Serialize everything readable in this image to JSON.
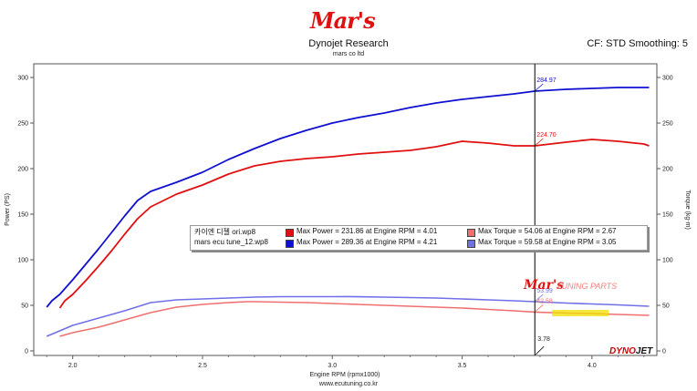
{
  "header": {
    "logo_text": "Mar's",
    "title": "Dynojet Research",
    "subtitle": "mars co ltd",
    "cf_label": "CF: STD Smoothing: 5"
  },
  "footer": {
    "url": "www.ecutuning.co.kr"
  },
  "watermarks": {
    "brand": "Mar's",
    "brand_sub": "TUNING PARTS",
    "dynojet_a": "DYNO",
    "dynojet_b": "JET"
  },
  "colors": {
    "ori_power": "#e01010",
    "ori_torque": "#f07070",
    "tune_power": "#1010d0",
    "tune_torque": "#7070e8"
  },
  "legend": [
    {
      "file": "카이엔 디젤 ori.wp8",
      "power": "Max Power = 231.86 at Engine RPM = 4.01",
      "torque": "Max Torque = 54.06 at Engine RPM = 2.67"
    },
    {
      "file": "mars ecu tune_12.wp8",
      "power": "Max Power = 289.36 at Engine RPM = 4.21",
      "torque": "Max Torque = 59.58 at Engine RPM = 3.05"
    }
  ],
  "chart_data": {
    "type": "line",
    "title": "Dynojet Research",
    "xlabel": "Engine RPM (rpmx1000)",
    "ylabel": "Power (PS)",
    "ylabel_right": "Torque (kg-m)",
    "xlim": [
      1.85,
      4.25
    ],
    "ylim": [
      -5,
      315
    ],
    "x_ticks": [
      "2.0",
      "2.5",
      "3.0",
      "3.5",
      "4.0"
    ],
    "x_tick_values": [
      2.0,
      2.5,
      3.0,
      3.5,
      4.0
    ],
    "y_ticks": [
      "0",
      "50",
      "100",
      "150",
      "200",
      "250",
      "300"
    ],
    "y_tick_values": [
      0,
      50,
      100,
      150,
      200,
      250,
      300
    ],
    "grid": false,
    "cursor": {
      "x": 3.78,
      "label": "3.78",
      "readouts": [
        {
          "value": "284.97",
          "y": 285,
          "series": "tune_power"
        },
        {
          "value": "224.70",
          "y": 225,
          "series": "ori_power"
        },
        {
          "value": "53.99",
          "y": 54,
          "series": "tune_torque"
        },
        {
          "value": "42.58",
          "y": 42.6,
          "series": "ori_torque"
        }
      ]
    },
    "series": [
      {
        "key": "tune_power",
        "x": [
          1.9,
          1.92,
          1.95,
          2.0,
          2.05,
          2.1,
          2.15,
          2.2,
          2.25,
          2.3,
          2.4,
          2.5,
          2.6,
          2.7,
          2.8,
          2.9,
          3.0,
          3.1,
          3.2,
          3.3,
          3.4,
          3.5,
          3.6,
          3.7,
          3.78,
          3.9,
          4.0,
          4.1,
          4.2,
          4.22
        ],
        "y": [
          48,
          55,
          62,
          78,
          95,
          112,
          130,
          148,
          165,
          175,
          185,
          196,
          210,
          222,
          233,
          242,
          250,
          256,
          261,
          267,
          272,
          276,
          279,
          282,
          285,
          287,
          288,
          289,
          289,
          289
        ]
      },
      {
        "key": "ori_power",
        "x": [
          1.95,
          1.97,
          2.0,
          2.05,
          2.1,
          2.15,
          2.2,
          2.25,
          2.3,
          2.4,
          2.5,
          2.6,
          2.7,
          2.8,
          2.9,
          3.0,
          3.1,
          3.2,
          3.3,
          3.4,
          3.5,
          3.6,
          3.7,
          3.78,
          3.9,
          4.0,
          4.1,
          4.2,
          4.22
        ],
        "y": [
          47,
          55,
          62,
          77,
          93,
          110,
          128,
          145,
          158,
          172,
          182,
          194,
          203,
          208,
          211,
          213,
          216,
          218,
          220,
          224,
          230,
          228,
          225,
          225,
          229,
          232,
          230,
          227,
          225
        ]
      },
      {
        "key": "tune_torque",
        "x": [
          1.9,
          1.95,
          2.0,
          2.1,
          2.2,
          2.3,
          2.4,
          2.5,
          2.6,
          2.7,
          2.8,
          2.9,
          3.0,
          3.05,
          3.1,
          3.2,
          3.3,
          3.4,
          3.5,
          3.6,
          3.7,
          3.78,
          3.9,
          4.0,
          4.1,
          4.22
        ],
        "y": [
          16,
          22,
          28,
          36,
          44,
          53,
          56,
          57,
          58,
          59,
          59.5,
          59.5,
          59.5,
          59.6,
          59.4,
          59,
          58.5,
          58,
          57,
          56,
          55,
          54,
          52.5,
          51.5,
          50.5,
          49
        ]
      },
      {
        "key": "ori_torque",
        "x": [
          1.95,
          2.0,
          2.1,
          2.2,
          2.3,
          2.4,
          2.5,
          2.6,
          2.67,
          2.7,
          2.8,
          2.9,
          3.0,
          3.1,
          3.2,
          3.3,
          3.4,
          3.5,
          3.6,
          3.7,
          3.78,
          3.9,
          4.0,
          4.1,
          4.22
        ],
        "y": [
          16,
          20,
          26,
          34,
          42,
          48,
          51,
          53,
          54,
          54,
          53.5,
          53,
          52,
          51,
          50,
          49,
          48,
          47,
          45.5,
          44,
          42.6,
          41.5,
          41,
          40,
          39
        ]
      }
    ]
  }
}
